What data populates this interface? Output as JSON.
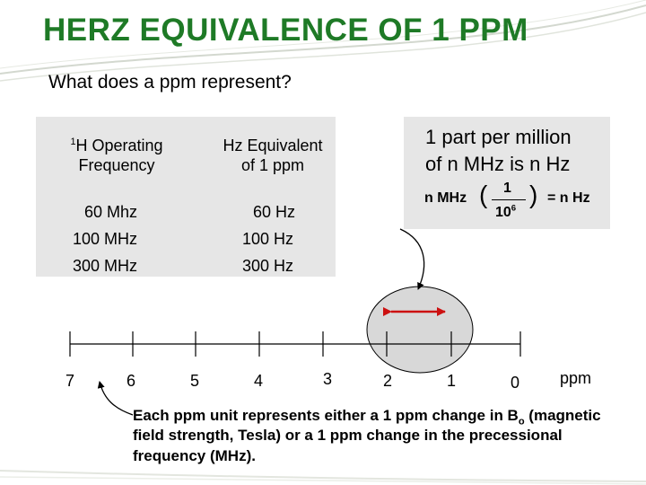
{
  "title": "HERZ EQUIVALENCE OF 1 PPM",
  "subtitle": "What does a ppm represent?",
  "table": {
    "col1_header_sup": "1",
    "col1_header_line1": "H Operating",
    "col1_header_line2": "Frequency",
    "col2_header_line1": "Hz Equivalent",
    "col2_header_line2": "of 1 ppm",
    "rows": [
      {
        "frequency": "60 Mhz",
        "hz": "60 Hz"
      },
      {
        "frequency": "100 MHz",
        "hz": "100 Hz"
      },
      {
        "frequency": "300 MHz",
        "hz": "300 Hz"
      }
    ]
  },
  "definition": {
    "line1": "1 part per million",
    "line2": "of n MHz is n Hz",
    "formula_prefix": "n MHz",
    "numerator": "1",
    "denominator_base": "10",
    "denominator_exp": "6",
    "result": "= n Hz"
  },
  "scale": {
    "ticks": [
      "7",
      "6",
      "5",
      "4",
      "3",
      "2",
      "1",
      "0"
    ],
    "unit": "ppm"
  },
  "note": {
    "part1": "Each ppm unit represents either a 1 ppm change in B",
    "sub": "o",
    "part2": " (magnetic field strength, Tesla)  or  a 1 ppm change in the precessional frequency (MHz)."
  },
  "colors": {
    "title": "#1e7a26",
    "highlight_oval": "#d8d8d8",
    "arrow_red": "#cc1111",
    "box_gray": "#e6e6e6"
  }
}
